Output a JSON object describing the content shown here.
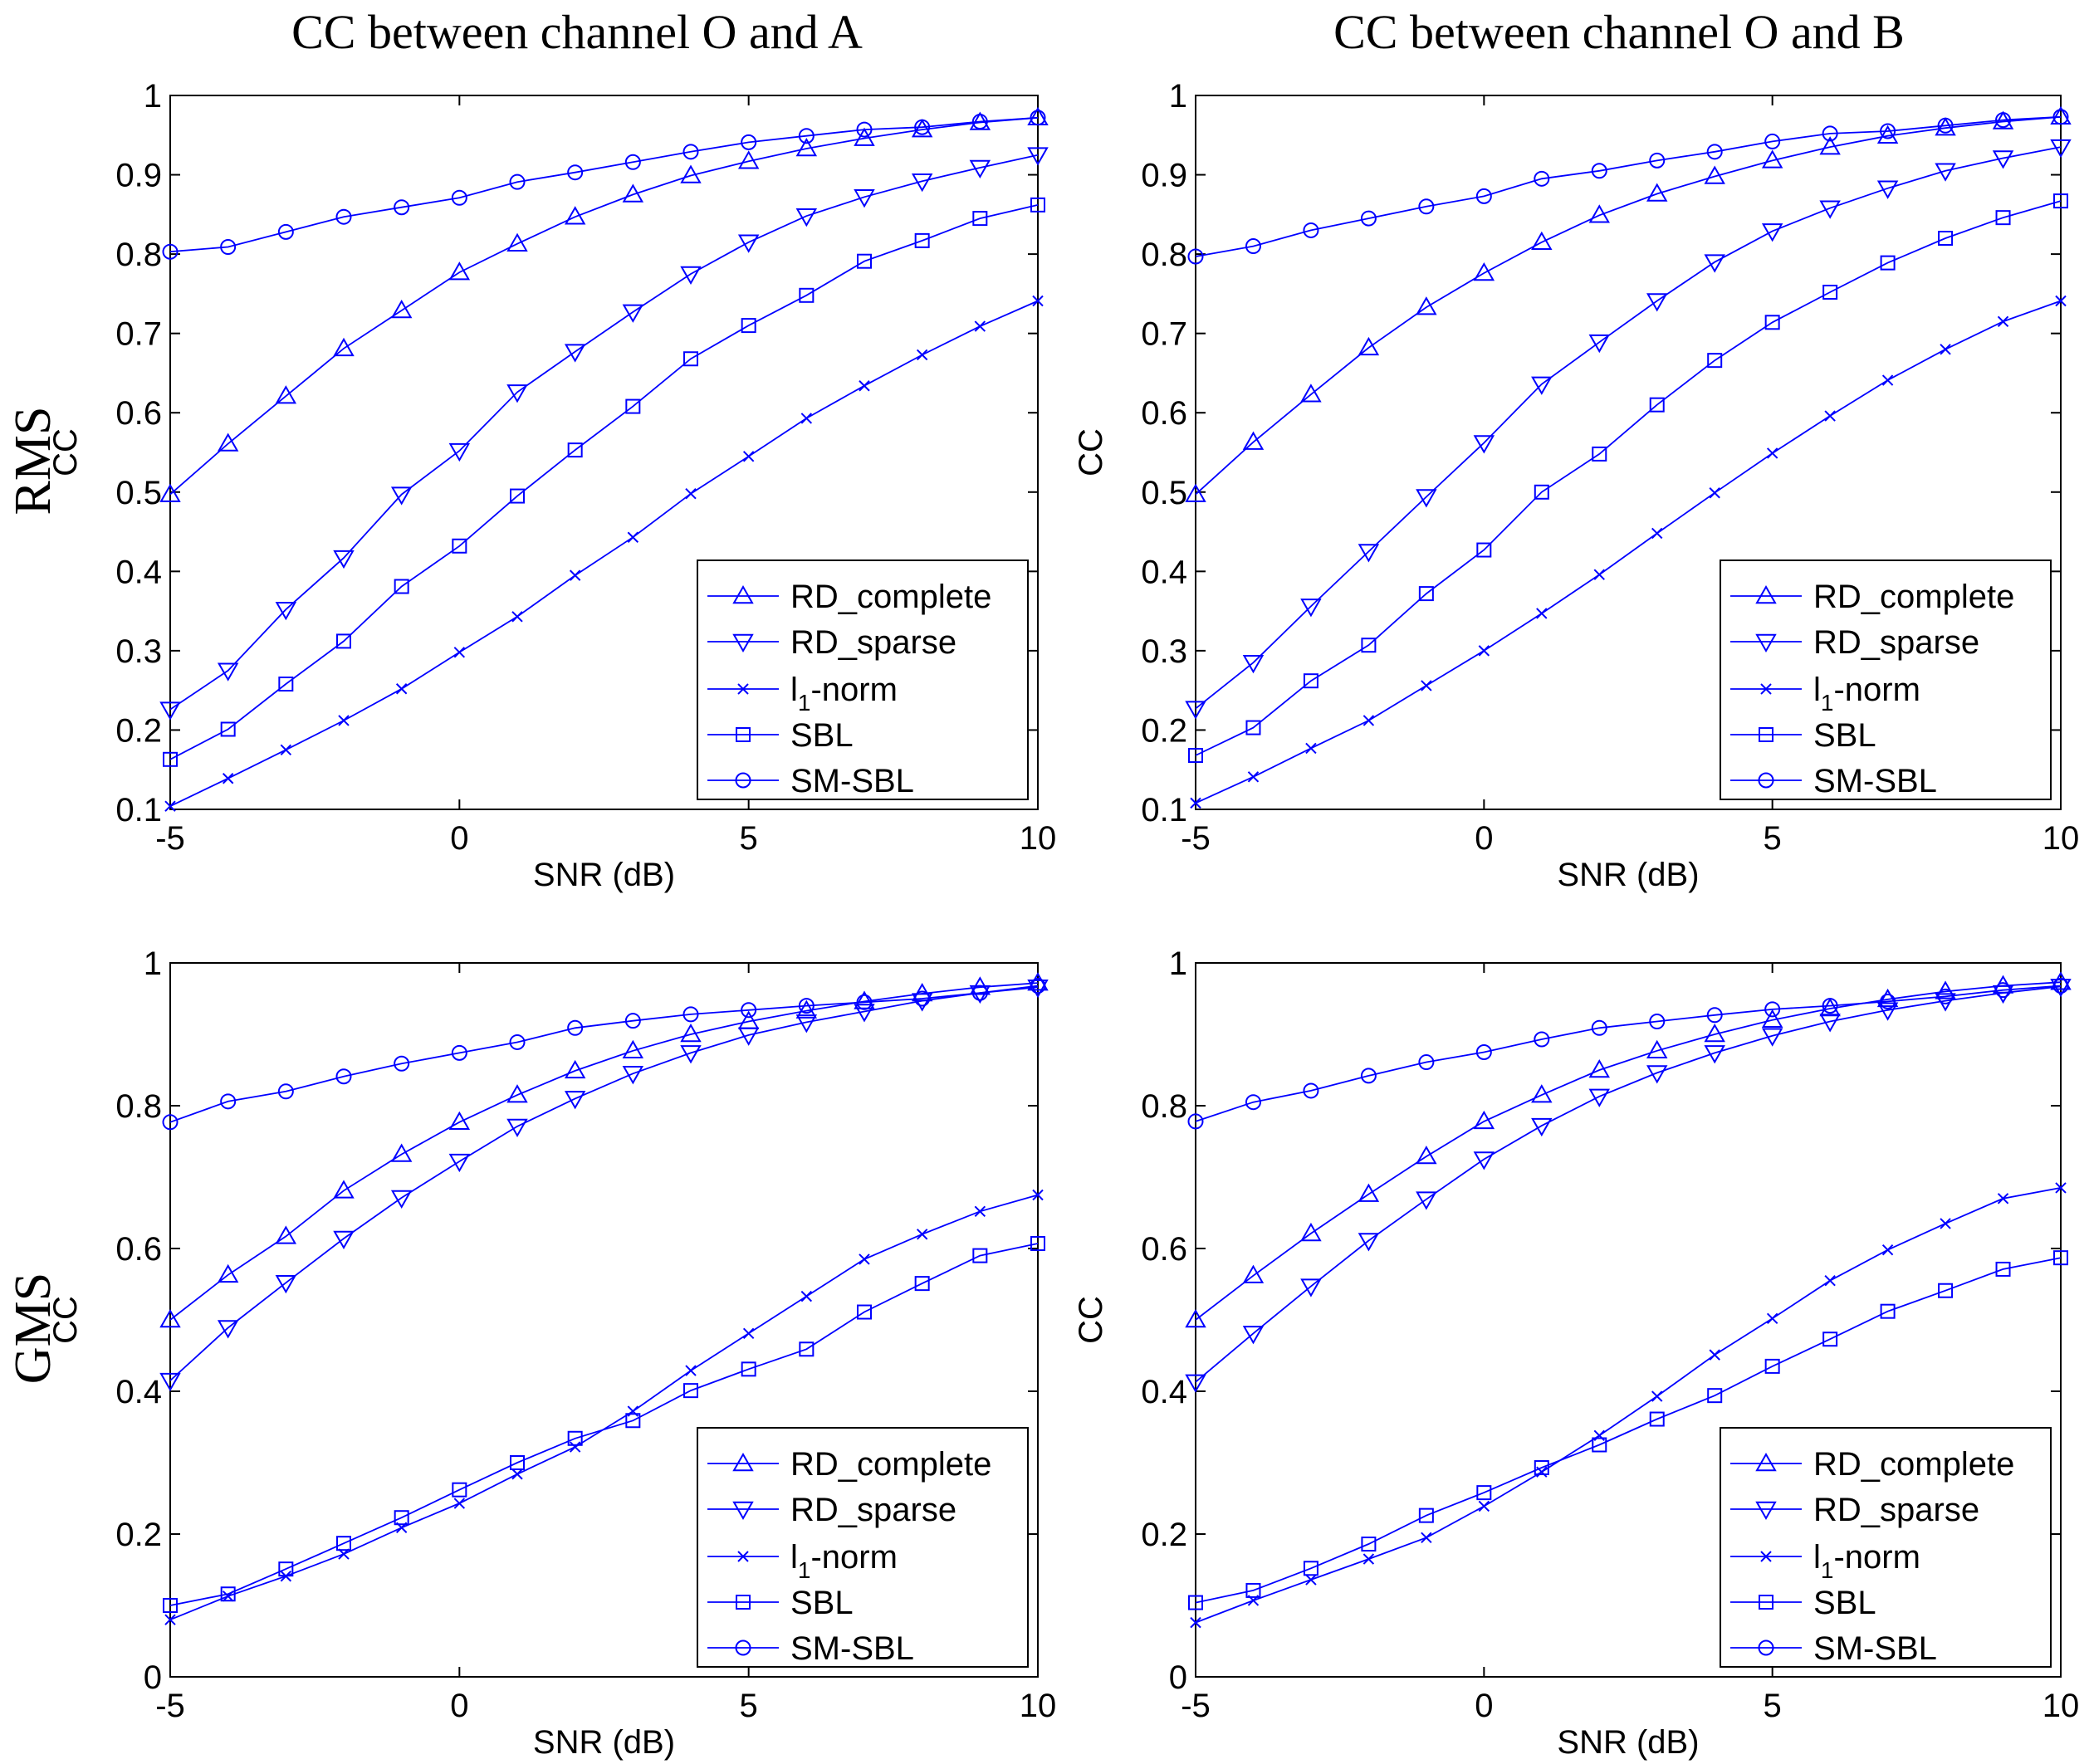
{
  "column_titles": [
    "CC between channel O and A",
    "CC between channel O and B"
  ],
  "row_labels": [
    "RMS",
    "GMS"
  ],
  "colors": {
    "series": "#0000ff",
    "axis": "#000000",
    "background": "#ffffff"
  },
  "legend_text": {
    "rd_complete": "RD_complete",
    "rd_sparse": "RD_sparse",
    "l1_pre": "l",
    "l1_sub": "1",
    "l1_post": "-norm",
    "sbl": "SBL",
    "sm_sbl": "SM-SBL"
  },
  "chart_data": [
    {
      "type": "line",
      "title": "CC between channel O and A",
      "row": "RMS",
      "xlabel": "SNR (dB)",
      "ylabel": "CC",
      "xlim": [
        -5,
        10
      ],
      "ylim": [
        0.1,
        1
      ],
      "xticks": [
        -5,
        0,
        5,
        10
      ],
      "yticks": [
        0.1,
        0.2,
        0.3,
        0.4,
        0.5,
        0.6,
        0.7,
        0.8,
        0.9,
        1
      ],
      "ytick_labels": [
        "0.1",
        "0.2",
        "0.3",
        "0.4",
        "0.5",
        "0.6",
        "0.7",
        "0.8",
        "0.9",
        "1"
      ],
      "legend_position": "bottom-right",
      "x": [
        -5,
        -4,
        -3,
        -2,
        -1,
        0,
        1,
        2,
        3,
        4,
        5,
        6,
        7,
        8,
        9,
        10
      ],
      "series": [
        {
          "name": "RD_complete",
          "marker": "triangle-up",
          "values": [
            0.497,
            0.561,
            0.621,
            0.681,
            0.729,
            0.777,
            0.813,
            0.847,
            0.875,
            0.899,
            0.917,
            0.933,
            0.946,
            0.957,
            0.966,
            0.972
          ]
        },
        {
          "name": "RD_sparse",
          "marker": "triangle-down",
          "values": [
            0.226,
            0.275,
            0.352,
            0.417,
            0.497,
            0.552,
            0.626,
            0.677,
            0.727,
            0.775,
            0.815,
            0.848,
            0.872,
            0.892,
            0.909,
            0.925
          ]
        },
        {
          "name": "l1-norm",
          "marker": "x",
          "values": [
            0.104,
            0.139,
            0.175,
            0.212,
            0.252,
            0.298,
            0.343,
            0.395,
            0.443,
            0.498,
            0.545,
            0.593,
            0.634,
            0.673,
            0.709,
            0.741
          ]
        },
        {
          "name": "SBL",
          "marker": "square",
          "values": [
            0.163,
            0.201,
            0.258,
            0.312,
            0.381,
            0.432,
            0.495,
            0.553,
            0.608,
            0.668,
            0.71,
            0.748,
            0.791,
            0.817,
            0.845,
            0.862
          ]
        },
        {
          "name": "SM-SBL",
          "marker": "circle",
          "values": [
            0.803,
            0.809,
            0.828,
            0.847,
            0.859,
            0.871,
            0.891,
            0.903,
            0.916,
            0.929,
            0.941,
            0.949,
            0.957,
            0.96,
            0.967,
            0.972
          ]
        }
      ]
    },
    {
      "type": "line",
      "title": "CC between channel O and B",
      "row": "RMS",
      "xlabel": "SNR (dB)",
      "ylabel": "CC",
      "xlim": [
        -5,
        10
      ],
      "ylim": [
        0.1,
        1
      ],
      "xticks": [
        -5,
        0,
        5,
        10
      ],
      "yticks": [
        0.1,
        0.2,
        0.3,
        0.4,
        0.5,
        0.6,
        0.7,
        0.8,
        0.9,
        1
      ],
      "ytick_labels": [
        "0.1",
        "0.2",
        "0.3",
        "0.4",
        "0.5",
        "0.6",
        "0.7",
        "0.8",
        "0.9",
        "1"
      ],
      "legend_position": "bottom-right",
      "x": [
        -5,
        -4,
        -3,
        -2,
        -1,
        0,
        1,
        2,
        3,
        4,
        5,
        6,
        7,
        8,
        9,
        10
      ],
      "series": [
        {
          "name": "RD_complete",
          "marker": "triangle-up",
          "values": [
            0.497,
            0.563,
            0.623,
            0.682,
            0.733,
            0.776,
            0.815,
            0.849,
            0.876,
            0.898,
            0.918,
            0.935,
            0.949,
            0.959,
            0.967,
            0.973
          ]
        },
        {
          "name": "RD_sparse",
          "marker": "triangle-down",
          "values": [
            0.227,
            0.285,
            0.356,
            0.425,
            0.494,
            0.562,
            0.636,
            0.689,
            0.741,
            0.79,
            0.829,
            0.858,
            0.883,
            0.905,
            0.921,
            0.935
          ]
        },
        {
          "name": "l1-norm",
          "marker": "x",
          "values": [
            0.108,
            0.141,
            0.177,
            0.212,
            0.256,
            0.3,
            0.347,
            0.396,
            0.448,
            0.499,
            0.549,
            0.596,
            0.641,
            0.68,
            0.715,
            0.741
          ]
        },
        {
          "name": "SBL",
          "marker": "square",
          "values": [
            0.168,
            0.203,
            0.262,
            0.307,
            0.372,
            0.427,
            0.5,
            0.548,
            0.61,
            0.666,
            0.714,
            0.752,
            0.789,
            0.82,
            0.846,
            0.867
          ]
        },
        {
          "name": "SM-SBL",
          "marker": "circle",
          "values": [
            0.797,
            0.81,
            0.83,
            0.845,
            0.86,
            0.873,
            0.895,
            0.905,
            0.918,
            0.929,
            0.942,
            0.952,
            0.955,
            0.962,
            0.969,
            0.973
          ]
        }
      ]
    },
    {
      "type": "line",
      "title": "",
      "row": "GMS",
      "xlabel": "SNR (dB)",
      "ylabel": "CC",
      "xlim": [
        -5,
        10
      ],
      "ylim": [
        0,
        1
      ],
      "xticks": [
        -5,
        0,
        5,
        10
      ],
      "yticks": [
        0,
        0.2,
        0.4,
        0.6,
        0.8,
        1
      ],
      "ytick_labels": [
        "0",
        "0.2",
        "0.4",
        "0.6",
        "0.8",
        "1"
      ],
      "legend_position": "bottom-right",
      "x": [
        -5,
        -4,
        -3,
        -2,
        -1,
        0,
        1,
        2,
        3,
        4,
        5,
        6,
        7,
        8,
        9,
        10
      ],
      "series": [
        {
          "name": "RD_complete",
          "marker": "triangle-up",
          "values": [
            0.5,
            0.563,
            0.617,
            0.681,
            0.732,
            0.777,
            0.815,
            0.849,
            0.877,
            0.9,
            0.918,
            0.933,
            0.946,
            0.957,
            0.966,
            0.972
          ]
        },
        {
          "name": "RD_sparse",
          "marker": "triangle-down",
          "values": [
            0.415,
            0.489,
            0.552,
            0.614,
            0.671,
            0.722,
            0.771,
            0.81,
            0.845,
            0.874,
            0.899,
            0.917,
            0.932,
            0.947,
            0.958,
            0.966
          ]
        },
        {
          "name": "l1-norm",
          "marker": "x",
          "values": [
            0.08,
            0.113,
            0.141,
            0.172,
            0.209,
            0.243,
            0.284,
            0.322,
            0.372,
            0.429,
            0.481,
            0.533,
            0.585,
            0.62,
            0.652,
            0.675
          ]
        },
        {
          "name": "SBL",
          "marker": "square",
          "values": [
            0.1,
            0.116,
            0.151,
            0.187,
            0.223,
            0.262,
            0.3,
            0.334,
            0.359,
            0.401,
            0.431,
            0.459,
            0.511,
            0.551,
            0.59,
            0.607
          ]
        },
        {
          "name": "SM-SBL",
          "marker": "circle",
          "values": [
            0.777,
            0.806,
            0.82,
            0.841,
            0.859,
            0.874,
            0.889,
            0.909,
            0.919,
            0.928,
            0.934,
            0.94,
            0.945,
            0.95,
            0.958,
            0.968
          ]
        }
      ]
    },
    {
      "type": "line",
      "title": "",
      "row": "GMS",
      "xlabel": "SNR (dB)",
      "ylabel": "CC",
      "xlim": [
        -5,
        10
      ],
      "ylim": [
        0,
        1
      ],
      "xticks": [
        -5,
        0,
        5,
        10
      ],
      "yticks": [
        0,
        0.2,
        0.4,
        0.6,
        0.8,
        1
      ],
      "ytick_labels": [
        "0",
        "0.2",
        "0.4",
        "0.6",
        "0.8",
        "1"
      ],
      "legend_position": "bottom-right",
      "x": [
        -5,
        -4,
        -3,
        -2,
        -1,
        0,
        1,
        2,
        3,
        4,
        5,
        6,
        7,
        8,
        9,
        10
      ],
      "series": [
        {
          "name": "RD_complete",
          "marker": "triangle-up",
          "values": [
            0.5,
            0.562,
            0.621,
            0.676,
            0.729,
            0.778,
            0.815,
            0.85,
            0.877,
            0.9,
            0.92,
            0.936,
            0.949,
            0.96,
            0.968,
            0.973
          ]
        },
        {
          "name": "RD_sparse",
          "marker": "triangle-down",
          "values": [
            0.413,
            0.481,
            0.547,
            0.611,
            0.669,
            0.725,
            0.772,
            0.813,
            0.846,
            0.874,
            0.898,
            0.918,
            0.934,
            0.947,
            0.958,
            0.967
          ]
        },
        {
          "name": "l1-norm",
          "marker": "x",
          "values": [
            0.076,
            0.107,
            0.136,
            0.165,
            0.195,
            0.239,
            0.287,
            0.338,
            0.393,
            0.451,
            0.502,
            0.555,
            0.598,
            0.635,
            0.67,
            0.685
          ]
        },
        {
          "name": "SBL",
          "marker": "square",
          "values": [
            0.104,
            0.121,
            0.152,
            0.186,
            0.226,
            0.258,
            0.293,
            0.325,
            0.361,
            0.394,
            0.435,
            0.473,
            0.512,
            0.541,
            0.571,
            0.587
          ]
        },
        {
          "name": "SM-SBL",
          "marker": "circle",
          "values": [
            0.778,
            0.805,
            0.821,
            0.842,
            0.861,
            0.875,
            0.893,
            0.909,
            0.918,
            0.927,
            0.935,
            0.94,
            0.946,
            0.953,
            0.962,
            0.968
          ]
        }
      ]
    }
  ]
}
